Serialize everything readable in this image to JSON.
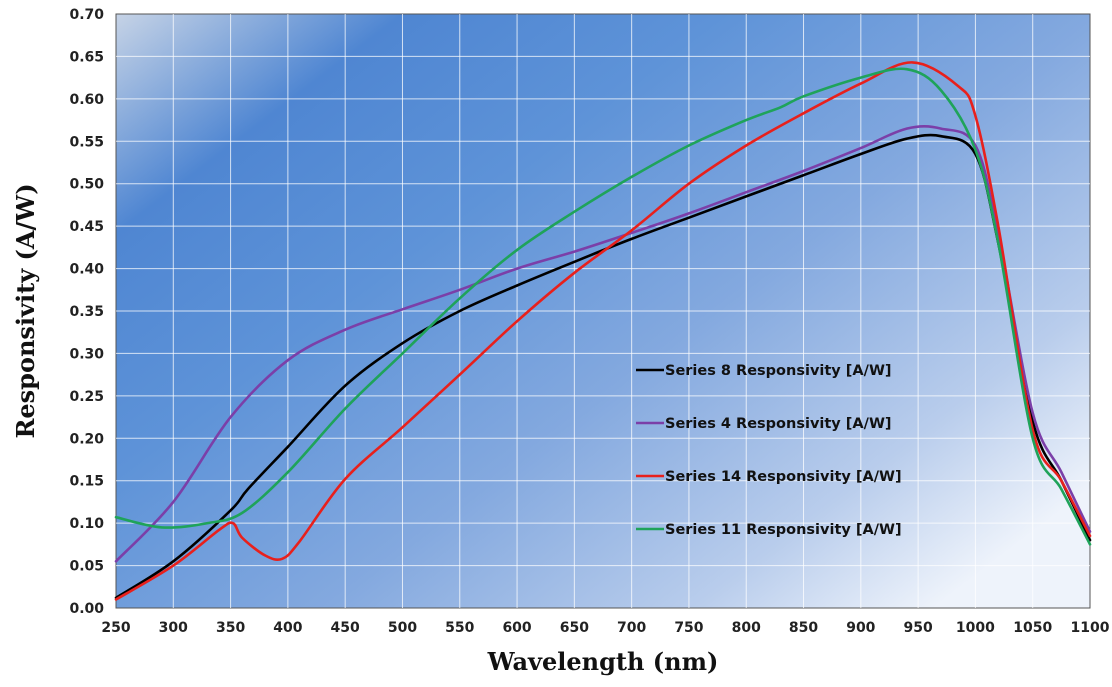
{
  "chart_data": {
    "type": "line",
    "title": "",
    "xlabel": "Wavelength (nm)",
    "ylabel": "Responsivity (A/W)",
    "xlim": [
      250,
      1100
    ],
    "ylim": [
      0,
      0.7
    ],
    "xticks": [
      250,
      300,
      350,
      400,
      450,
      500,
      550,
      600,
      650,
      700,
      750,
      800,
      850,
      900,
      950,
      1000,
      1050,
      1100
    ],
    "yticks": [
      "0.00",
      "0.05",
      "0.10",
      "0.15",
      "0.20",
      "0.25",
      "0.30",
      "0.35",
      "0.40",
      "0.45",
      "0.50",
      "0.55",
      "0.60",
      "0.65",
      "0.70"
    ],
    "grid": true,
    "legend_position": "center-right",
    "series": [
      {
        "name": "Series 8 Responsivity [A/W]",
        "color": "#000000",
        "x": [
          250,
          300,
          350,
          365,
          400,
          450,
          500,
          550,
          600,
          650,
          700,
          750,
          800,
          850,
          900,
          940,
          970,
          1000,
          1020,
          1050,
          1075,
          1100
        ],
        "y": [
          0.012,
          0.055,
          0.115,
          0.14,
          0.19,
          0.262,
          0.312,
          0.35,
          0.38,
          0.408,
          0.435,
          0.46,
          0.485,
          0.51,
          0.535,
          0.553,
          0.556,
          0.535,
          0.43,
          0.22,
          0.15,
          0.08
        ]
      },
      {
        "name": "Series 4 Responsivity [A/W]",
        "color": "#7b3fa8",
        "x": [
          250,
          300,
          350,
          400,
          450,
          500,
          550,
          600,
          650,
          700,
          750,
          800,
          850,
          900,
          940,
          970,
          1000,
          1020,
          1050,
          1075,
          1100
        ],
        "y": [
          0.055,
          0.125,
          0.225,
          0.292,
          0.328,
          0.352,
          0.375,
          0.4,
          0.42,
          0.442,
          0.465,
          0.49,
          0.515,
          0.542,
          0.565,
          0.565,
          0.545,
          0.44,
          0.23,
          0.16,
          0.09
        ]
      },
      {
        "name": "Series 14 Responsivity [A/W]",
        "color": "#e8201c",
        "x": [
          250,
          300,
          340,
          352,
          360,
          380,
          395,
          410,
          450,
          500,
          550,
          600,
          650,
          700,
          750,
          800,
          850,
          900,
          945,
          985,
          1000,
          1020,
          1050,
          1075,
          1100
        ],
        "y": [
          0.01,
          0.05,
          0.092,
          0.1,
          0.083,
          0.062,
          0.058,
          0.078,
          0.152,
          0.213,
          0.275,
          0.338,
          0.395,
          0.445,
          0.5,
          0.545,
          0.583,
          0.618,
          0.643,
          0.615,
          0.58,
          0.45,
          0.21,
          0.15,
          0.085
        ]
      },
      {
        "name": "Series 11 Responsivity [A/W]",
        "color": "#1fa35a",
        "x": [
          250,
          290,
          330,
          360,
          400,
          450,
          500,
          550,
          600,
          650,
          700,
          750,
          800,
          830,
          850,
          900,
          940,
          970,
          1000,
          1020,
          1050,
          1075,
          1100
        ],
        "y": [
          0.107,
          0.095,
          0.1,
          0.112,
          0.16,
          0.235,
          0.3,
          0.365,
          0.422,
          0.467,
          0.508,
          0.545,
          0.575,
          0.59,
          0.603,
          0.625,
          0.635,
          0.61,
          0.54,
          0.43,
          0.2,
          0.14,
          0.075
        ]
      }
    ]
  }
}
